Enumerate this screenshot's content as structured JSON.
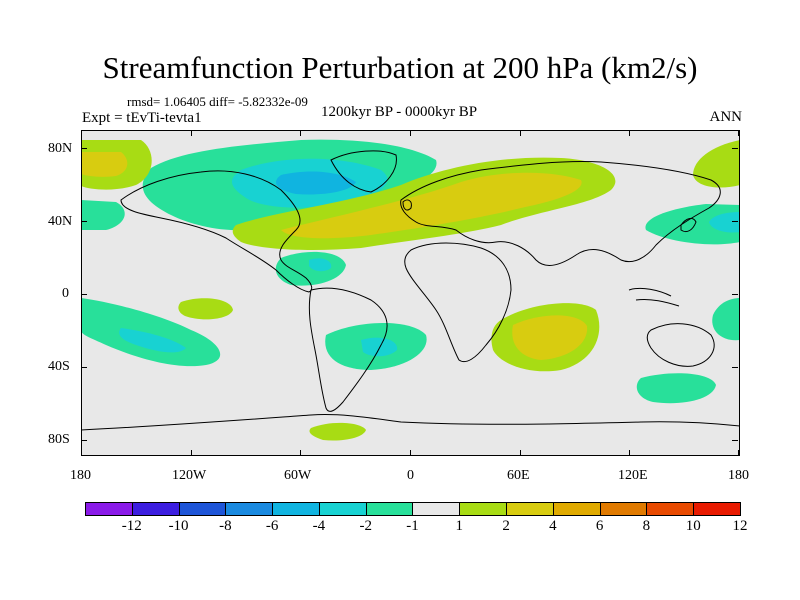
{
  "title": "Streamfunction Perturbation at 200 hPa (km2/s)",
  "stats_line": "rmsd= 1.06405  diff= -5.82332e-09",
  "experiment": "Expt = tEvTi-tevta1",
  "period": "1200kyr BP - 0000kyr BP",
  "season": "ANN",
  "lat_labels": [
    "80N",
    "40N",
    "0",
    "40S",
    "80S"
  ],
  "lon_labels": [
    "180",
    "120W",
    "60W",
    "0",
    "60E",
    "120E",
    "180"
  ],
  "colorbar": {
    "labels": [
      "-12",
      "-10",
      "-8",
      "-6",
      "-4",
      "-2",
      "-1",
      "1",
      "2",
      "4",
      "6",
      "8",
      "10",
      "12"
    ],
    "colors": [
      "#8a1ae8",
      "#3c1ee0",
      "#1e55d8",
      "#1a8ae0",
      "#10b4e0",
      "#18d2d2",
      "#28e09a",
      "#e8e8e8",
      "#a8dc14",
      "#d8cc10",
      "#e0aa00",
      "#e07a00",
      "#e84a00",
      "#e81a00"
    ]
  },
  "field_colors": {
    "neg1": "#28e09a",
    "neg2": "#18d2d2",
    "neg3": "#10b4e0",
    "pos1": "#a8dc14",
    "pos2": "#d8cc10",
    "land": "#000000"
  }
}
